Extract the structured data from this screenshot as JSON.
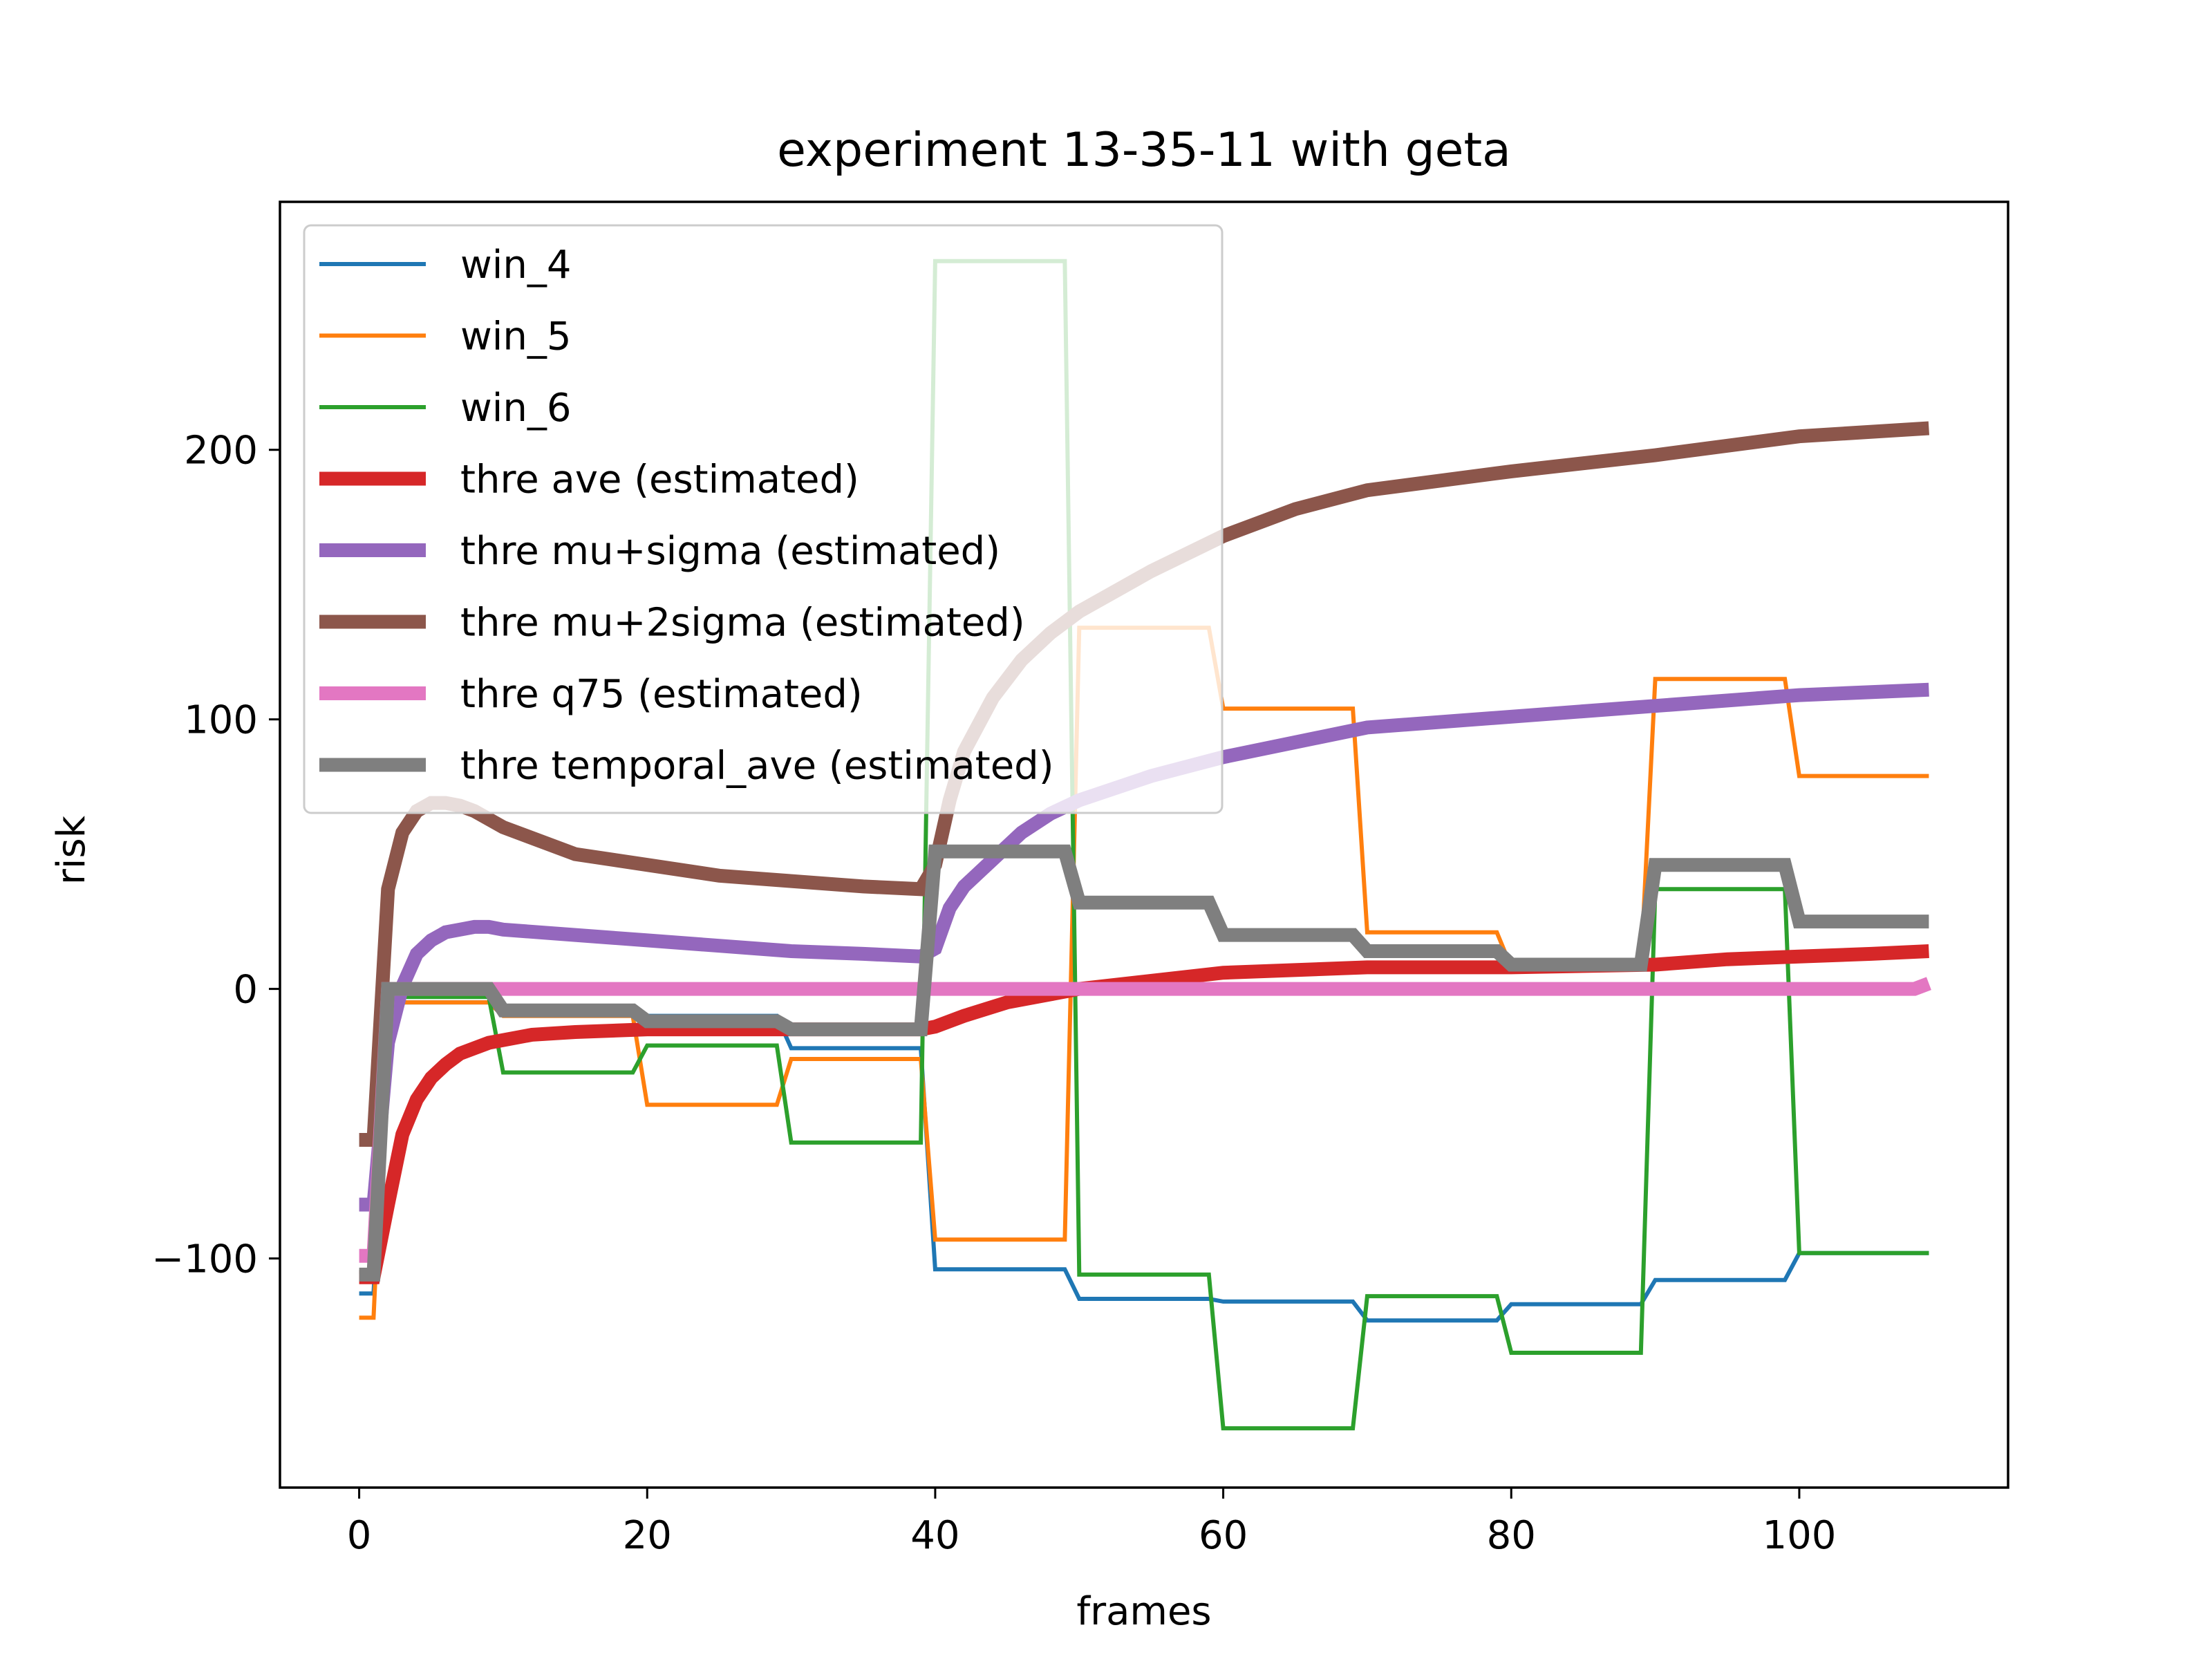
{
  "chart_data": {
    "type": "line",
    "title": "experiment 13-35-11 with geta",
    "xlabel": "frames",
    "ylabel": "risk",
    "xlim": [
      -5.5,
      114.5
    ],
    "ylim": [
      -185,
      292
    ],
    "xticks": [
      0,
      20,
      40,
      60,
      80,
      100
    ],
    "xtick_labels": [
      "0",
      "20",
      "40",
      "60",
      "80",
      "100"
    ],
    "yticks": [
      -100,
      0,
      100,
      200
    ],
    "ytick_labels": [
      "−100",
      "0",
      "100",
      "200"
    ],
    "grid": false,
    "legend_position": "upper-left",
    "series": [
      {
        "name": "win_4",
        "color": "#1f77b4",
        "width": "thin",
        "points": [
          [
            0,
            -113
          ],
          [
            1,
            -113
          ],
          [
            2,
            -5
          ],
          [
            9,
            -5
          ],
          [
            10,
            -10
          ],
          [
            29,
            -10
          ],
          [
            30,
            -22
          ],
          [
            39,
            -22
          ],
          [
            40,
            -104
          ],
          [
            49,
            -104
          ],
          [
            50,
            -115
          ],
          [
            59,
            -115
          ],
          [
            60,
            -116
          ],
          [
            69,
            -116
          ],
          [
            70,
            -123
          ],
          [
            79,
            -123
          ],
          [
            80,
            -117
          ],
          [
            89,
            -117
          ],
          [
            90,
            -108
          ],
          [
            99,
            -108
          ],
          [
            100,
            -98
          ],
          [
            109,
            -98
          ]
        ]
      },
      {
        "name": "win_5",
        "color": "#ff7f0e",
        "width": "thin",
        "points": [
          [
            0,
            -122
          ],
          [
            1,
            -122
          ],
          [
            2,
            -5
          ],
          [
            9,
            -5
          ],
          [
            10,
            -10
          ],
          [
            19,
            -10
          ],
          [
            20,
            -43
          ],
          [
            29,
            -43
          ],
          [
            30,
            -26
          ],
          [
            39,
            -26
          ],
          [
            40,
            -93
          ],
          [
            49,
            -93
          ],
          [
            50,
            134
          ],
          [
            59,
            134
          ],
          [
            60,
            104
          ],
          [
            69,
            104
          ],
          [
            70,
            21
          ],
          [
            79,
            21
          ],
          [
            80,
            8
          ],
          [
            89,
            8
          ],
          [
            90,
            115
          ],
          [
            99,
            115
          ],
          [
            100,
            79
          ],
          [
            109,
            79
          ]
        ]
      },
      {
        "name": "win_6",
        "color": "#2ca02c",
        "width": "thin",
        "points": [
          [
            0,
            -105
          ],
          [
            1,
            -105
          ],
          [
            2,
            -3
          ],
          [
            9,
            -3
          ],
          [
            10,
            -31
          ],
          [
            19,
            -31
          ],
          [
            20,
            -21
          ],
          [
            29,
            -21
          ],
          [
            30,
            -57
          ],
          [
            39,
            -57
          ],
          [
            40,
            270
          ],
          [
            49,
            270
          ],
          [
            50,
            -106
          ],
          [
            59,
            -106
          ],
          [
            60,
            -163
          ],
          [
            69,
            -163
          ],
          [
            70,
            -114
          ],
          [
            79,
            -114
          ],
          [
            80,
            -135
          ],
          [
            89,
            -135
          ],
          [
            90,
            37
          ],
          [
            99,
            37
          ],
          [
            100,
            -98
          ],
          [
            109,
            -98
          ]
        ]
      },
      {
        "name": "thre ave (estimated)",
        "color": "#d62728",
        "width": "thick",
        "points": [
          [
            0,
            -107
          ],
          [
            1,
            -107
          ],
          [
            2,
            -80
          ],
          [
            3,
            -54
          ],
          [
            4,
            -41
          ],
          [
            5,
            -33
          ],
          [
            6,
            -28
          ],
          [
            7,
            -24
          ],
          [
            8,
            -22
          ],
          [
            9,
            -20
          ],
          [
            10,
            -19
          ],
          [
            12,
            -17
          ],
          [
            15,
            -16
          ],
          [
            20,
            -15
          ],
          [
            25,
            -15
          ],
          [
            30,
            -15
          ],
          [
            35,
            -15
          ],
          [
            39,
            -15
          ],
          [
            40,
            -14
          ],
          [
            42,
            -10
          ],
          [
            45,
            -5
          ],
          [
            48,
            -2
          ],
          [
            50,
            0
          ],
          [
            55,
            3
          ],
          [
            60,
            6
          ],
          [
            70,
            8
          ],
          [
            80,
            8
          ],
          [
            90,
            9
          ],
          [
            95,
            11
          ],
          [
            100,
            12
          ],
          [
            105,
            13
          ],
          [
            109,
            14
          ]
        ]
      },
      {
        "name": "thre mu+sigma (estimated)",
        "color": "#9467bd",
        "width": "thick",
        "points": [
          [
            0,
            -80
          ],
          [
            1,
            -80
          ],
          [
            2,
            -20
          ],
          [
            3,
            1
          ],
          [
            4,
            13
          ],
          [
            5,
            18
          ],
          [
            6,
            21
          ],
          [
            7,
            22
          ],
          [
            8,
            23
          ],
          [
            9,
            23
          ],
          [
            10,
            22
          ],
          [
            15,
            20
          ],
          [
            20,
            18
          ],
          [
            25,
            16
          ],
          [
            30,
            14
          ],
          [
            35,
            13
          ],
          [
            39,
            12
          ],
          [
            40,
            15
          ],
          [
            41,
            30
          ],
          [
            42,
            38
          ],
          [
            44,
            48
          ],
          [
            46,
            58
          ],
          [
            48,
            65
          ],
          [
            50,
            70
          ],
          [
            55,
            79
          ],
          [
            60,
            86
          ],
          [
            70,
            97
          ],
          [
            80,
            101
          ],
          [
            90,
            105
          ],
          [
            100,
            109
          ],
          [
            109,
            111
          ]
        ]
      },
      {
        "name": "thre mu+2sigma (estimated)",
        "color": "#8c564b",
        "width": "thick",
        "points": [
          [
            0,
            -56
          ],
          [
            1,
            -56
          ],
          [
            2,
            37
          ],
          [
            3,
            58
          ],
          [
            4,
            66
          ],
          [
            5,
            69
          ],
          [
            6,
            69
          ],
          [
            7,
            68
          ],
          [
            8,
            66
          ],
          [
            10,
            60
          ],
          [
            15,
            50
          ],
          [
            20,
            46
          ],
          [
            25,
            42
          ],
          [
            30,
            40
          ],
          [
            35,
            38
          ],
          [
            39,
            37
          ],
          [
            40,
            46
          ],
          [
            41,
            70
          ],
          [
            42,
            88
          ],
          [
            44,
            108
          ],
          [
            46,
            122
          ],
          [
            48,
            132
          ],
          [
            50,
            140
          ],
          [
            55,
            155
          ],
          [
            60,
            168
          ],
          [
            65,
            178
          ],
          [
            70,
            185
          ],
          [
            80,
            192
          ],
          [
            90,
            198
          ],
          [
            100,
            205
          ],
          [
            109,
            208
          ]
        ]
      },
      {
        "name": "thre q75 (estimated)",
        "color": "#e377c2",
        "width": "thick",
        "points": [
          [
            0,
            -99
          ],
          [
            1,
            -99
          ],
          [
            2,
            0
          ],
          [
            9,
            0
          ],
          [
            10,
            0
          ],
          [
            39,
            0
          ],
          [
            40,
            0
          ],
          [
            100,
            0
          ],
          [
            108,
            0
          ],
          [
            109,
            2
          ]
        ]
      },
      {
        "name": "thre temporal_ave (estimated)",
        "color": "#7f7f7f",
        "width": "thick",
        "points": [
          [
            0,
            -106
          ],
          [
            1,
            -106
          ],
          [
            2,
            0
          ],
          [
            9,
            0
          ],
          [
            10,
            -8
          ],
          [
            19,
            -8
          ],
          [
            20,
            -12
          ],
          [
            29,
            -12
          ],
          [
            30,
            -15
          ],
          [
            39,
            -15
          ],
          [
            40,
            51
          ],
          [
            49,
            51
          ],
          [
            50,
            32
          ],
          [
            59,
            32
          ],
          [
            60,
            20
          ],
          [
            69,
            20
          ],
          [
            70,
            14
          ],
          [
            79,
            14
          ],
          [
            80,
            9
          ],
          [
            89,
            9
          ],
          [
            90,
            46
          ],
          [
            99,
            46
          ],
          [
            100,
            25
          ],
          [
            109,
            25
          ]
        ]
      }
    ]
  }
}
